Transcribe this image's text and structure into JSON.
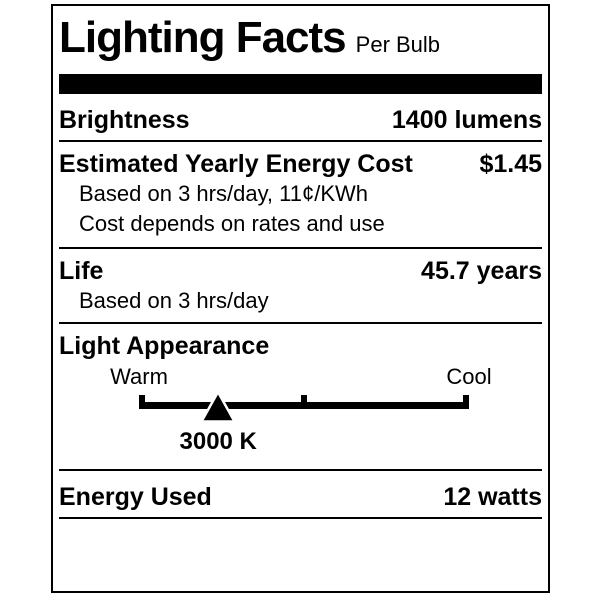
{
  "label": {
    "title": "Lighting Facts",
    "subtitle": "Per Bulb",
    "brightness": {
      "label": "Brightness",
      "value": "1400 lumens"
    },
    "energy_cost": {
      "label": "Estimated Yearly Energy Cost",
      "value": "$1.45",
      "note1": "Based on 3 hrs/day, 11¢/KWh",
      "note2": "Cost depends on rates and use"
    },
    "life": {
      "label": "Life",
      "value": "45.7 years",
      "note": "Based on 3 hrs/day"
    },
    "light_appearance": {
      "label": "Light Appearance",
      "warm_label": "Warm",
      "cool_label": "Cool",
      "kelvin": "3000 K",
      "marker_percent": 24
    },
    "energy_used": {
      "label": "Energy Used",
      "value": "12 watts"
    }
  },
  "colors": {
    "ink": "#000000",
    "background": "#ffffff"
  }
}
